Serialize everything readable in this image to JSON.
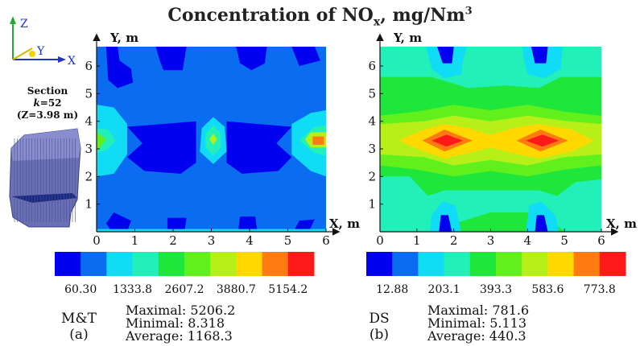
{
  "figure": {
    "title_main": "Concentration of NO",
    "title_sub": "x",
    "title_tail": ", mg/Nm",
    "title_sup": "3"
  },
  "axes_indicator": {
    "z": "Z",
    "y": "Y",
    "x": "X"
  },
  "section": {
    "line1": "Section",
    "line2_k": "k",
    "line2_rest": "=52",
    "line3": "(Z=3.98 m)"
  },
  "colors": {
    "scale": [
      "#0000ee",
      "#0a6cf0",
      "#11dcf5",
      "#22f0b8",
      "#1ee63a",
      "#62f01c",
      "#b6f018",
      "#ffd800",
      "#ff7a10",
      "#ff1a1a"
    ],
    "furnace": "#6b6fb4",
    "furnace_dark": "#1a2a80"
  },
  "chart_data": [
    {
      "type": "heatmap",
      "panel": "M&T",
      "panel_letter": "(a)",
      "xlabel": "X, m",
      "ylabel": "Y, m",
      "xlim": [
        0,
        6
      ],
      "ylim": [
        0,
        6.7
      ],
      "x_ticks": [
        "0",
        "1",
        "2",
        "3",
        "4",
        "5",
        "6"
      ],
      "y_ticks": [
        "1",
        "2",
        "3",
        "4",
        "5",
        "6"
      ],
      "colorbar_labels": [
        "60.30",
        "1333.8",
        "2607.2",
        "3880.7",
        "5154.2"
      ],
      "stats": {
        "maximal": "Maximal: 5206.2",
        "minimal": "Minimal: 8.318",
        "average": "Average: 1168.3"
      },
      "background_level": 1,
      "regions": [
        {
          "level": 0,
          "x": [
            0.25,
            0.55,
            0.6,
            0.9,
            0.95,
            0.55,
            0.3
          ],
          "y": [
            6.7,
            6.7,
            6.2,
            5.9,
            5.4,
            5.2,
            5.5
          ]
        },
        {
          "level": 0,
          "x": [
            1.55,
            2.35,
            2.25,
            1.75,
            1.65
          ],
          "y": [
            6.7,
            6.7,
            5.85,
            5.85,
            6.2
          ]
        },
        {
          "level": 0,
          "x": [
            3.65,
            4.45,
            4.4,
            4.05,
            3.75
          ],
          "y": [
            6.7,
            6.7,
            6.1,
            5.85,
            6.1
          ]
        },
        {
          "level": 0,
          "x": [
            5.1,
            5.7,
            5.85,
            5.3
          ],
          "y": [
            6.7,
            6.7,
            6.2,
            6.0
          ]
        },
        {
          "level": 0,
          "x": [
            0.8,
            2.6,
            2.6,
            2.2,
            1.25,
            0.8,
            1.2,
            0.8
          ],
          "y": [
            3.8,
            4.0,
            2.5,
            2.1,
            2.2,
            2.7,
            3.2,
            3.8
          ]
        },
        {
          "level": 0,
          "x": [
            3.4,
            5.1,
            4.7,
            5.1,
            4.75,
            3.8,
            3.4
          ],
          "y": [
            4.0,
            3.8,
            3.2,
            2.7,
            2.2,
            2.1,
            2.5
          ]
        },
        {
          "level": 0,
          "x": [
            0.4,
            0.8,
            0.9,
            0.45,
            0.25
          ],
          "y": [
            0.0,
            0.0,
            0.4,
            0.7,
            0.3
          ]
        },
        {
          "level": 0,
          "x": [
            1.85,
            2.3,
            2.35,
            1.85
          ],
          "y": [
            0.0,
            0.0,
            0.5,
            0.5
          ]
        },
        {
          "level": 0,
          "x": [
            3.7,
            4.2,
            4.15,
            3.75
          ],
          "y": [
            0.0,
            0.0,
            0.55,
            0.55
          ]
        },
        {
          "level": 0,
          "x": [
            5.15,
            5.55,
            5.7,
            5.3
          ],
          "y": [
            0.0,
            0.0,
            0.45,
            0.4
          ]
        },
        {
          "level": 2,
          "x": [
            0.0,
            0.45,
            0.8,
            0.8,
            0.45,
            0.0
          ],
          "y": [
            4.6,
            4.5,
            3.9,
            2.8,
            2.1,
            2.0
          ]
        },
        {
          "level": 2,
          "x": [
            6.0,
            5.6,
            5.1,
            5.1,
            5.6,
            6.0
          ],
          "y": [
            4.4,
            4.3,
            3.9,
            2.8,
            2.2,
            2.0
          ]
        },
        {
          "level": 2,
          "x": [
            2.75,
            3.05,
            3.35,
            3.4,
            3.05,
            2.7
          ],
          "y": [
            3.75,
            4.15,
            3.8,
            2.9,
            2.45,
            2.9
          ]
        },
        {
          "level": 2,
          "x": [
            0.0,
            6.0,
            6.0,
            0.0
          ],
          "y": [
            0.0,
            0.0,
            0.1,
            0.1
          ]
        },
        {
          "level": 3,
          "x": [
            0.0,
            0.3,
            0.5,
            0.25,
            0.0
          ],
          "y": [
            3.75,
            3.7,
            3.3,
            2.95,
            2.85
          ]
        },
        {
          "level": 3,
          "x": [
            6.0,
            5.7,
            5.3,
            5.7,
            6.0
          ],
          "y": [
            3.85,
            3.8,
            3.3,
            2.85,
            2.75
          ]
        },
        {
          "level": 3,
          "x": [
            2.85,
            3.05,
            3.25,
            3.25,
            3.05,
            2.85
          ],
          "y": [
            3.55,
            3.85,
            3.55,
            3.05,
            2.75,
            3.05
          ]
        },
        {
          "level": 5,
          "x": [
            0.0,
            0.25,
            0.05,
            0.0
          ],
          "y": [
            3.6,
            3.35,
            3.0,
            3.0
          ]
        },
        {
          "level": 6,
          "x": [
            2.95,
            3.05,
            3.15,
            3.05
          ],
          "y": [
            3.35,
            3.55,
            3.35,
            3.15
          ]
        },
        {
          "level": 6,
          "x": [
            6.0,
            5.6,
            5.45,
            5.6,
            6.0
          ],
          "y": [
            3.6,
            3.6,
            3.35,
            3.05,
            3.05
          ]
        },
        {
          "level": 8,
          "x": [
            5.65,
            5.95,
            5.95,
            5.65
          ],
          "y": [
            3.45,
            3.45,
            3.15,
            3.15
          ]
        }
      ]
    },
    {
      "type": "heatmap",
      "panel": "DS",
      "panel_letter": "(b)",
      "xlabel": "X, m",
      "ylabel": "Y, m",
      "xlim": [
        0,
        6
      ],
      "ylim": [
        0,
        6.7
      ],
      "x_ticks": [
        "0",
        "1",
        "2",
        "3",
        "4",
        "5",
        "6"
      ],
      "y_ticks": [
        "1",
        "2",
        "3",
        "4",
        "5",
        "6"
      ],
      "colorbar_labels": [
        "12.88",
        "203.1",
        "393.3",
        "583.6",
        "773.8"
      ],
      "stats": {
        "maximal": "Maximal: 781.6",
        "minimal": "Minimal: 5.113",
        "average": "Average: 440.3"
      },
      "background_level": 4,
      "regions": [
        {
          "level": 3,
          "x": [
            0.0,
            6.0,
            6.0,
            4.9,
            4.3,
            3.4,
            2.4,
            1.4,
            0.0
          ],
          "y": [
            6.7,
            6.7,
            5.6,
            5.6,
            5.2,
            5.3,
            5.2,
            5.6,
            5.6
          ]
        },
        {
          "level": 3,
          "x": [
            0.0,
            0.8,
            1.3,
            1.75,
            3.0,
            4.3,
            4.8,
            5.3,
            6.0,
            6.0,
            5.0,
            4.4,
            3.0,
            1.3,
            0.0
          ],
          "y": [
            2.0,
            2.0,
            1.3,
            1.5,
            1.5,
            1.5,
            1.3,
            1.8,
            1.9,
            0.0,
            0.0,
            0.7,
            0.7,
            0.0,
            0.0
          ]
        },
        {
          "level": 2,
          "x": [
            1.25,
            2.35,
            2.25,
            2.2,
            1.75,
            1.4
          ],
          "y": [
            6.7,
            6.7,
            6.2,
            5.7,
            5.55,
            5.9
          ]
        },
        {
          "level": 2,
          "x": [
            3.85,
            4.95,
            4.9,
            4.45,
            4.0,
            3.9
          ],
          "y": [
            6.7,
            6.7,
            5.9,
            5.55,
            5.7,
            6.2
          ]
        },
        {
          "level": 2,
          "x": [
            1.35,
            2.2,
            2.05,
            1.7,
            1.4
          ],
          "y": [
            0.0,
            0.0,
            0.95,
            1.1,
            0.6
          ]
        },
        {
          "level": 2,
          "x": [
            3.95,
            4.85,
            4.75,
            4.35,
            4.05
          ],
          "y": [
            0.0,
            0.0,
            0.6,
            1.1,
            0.95
          ]
        },
        {
          "level": 0,
          "x": [
            1.55,
            2.0,
            1.95,
            1.7
          ],
          "y": [
            6.7,
            6.7,
            6.1,
            6.1
          ]
        },
        {
          "level": 0,
          "x": [
            4.1,
            4.55,
            4.5,
            4.2
          ],
          "y": [
            6.7,
            6.7,
            6.1,
            6.1
          ]
        },
        {
          "level": 0,
          "x": [
            1.6,
            1.95,
            1.85,
            1.65
          ],
          "y": [
            0.0,
            0.0,
            0.6,
            0.6
          ]
        },
        {
          "level": 0,
          "x": [
            4.2,
            4.55,
            4.45,
            4.25
          ],
          "y": [
            0.0,
            0.0,
            0.6,
            0.6
          ]
        },
        {
          "level": 5,
          "x": [
            0.0,
            1.0,
            2.0,
            3.0,
            4.0,
            5.0,
            6.0,
            6.0,
            5.0,
            4.0,
            3.0,
            2.0,
            1.0,
            0.0
          ],
          "y": [
            4.2,
            4.35,
            4.6,
            4.4,
            4.6,
            4.35,
            4.2,
            2.4,
            2.25,
            2.0,
            2.2,
            2.0,
            2.25,
            2.4
          ]
        },
        {
          "level": 6,
          "x": [
            0.0,
            1.2,
            2.0,
            3.0,
            4.0,
            5.1,
            6.0,
            6.0,
            5.0,
            4.0,
            3.0,
            2.0,
            1.2,
            0.0
          ],
          "y": [
            3.9,
            4.0,
            4.2,
            4.0,
            4.2,
            4.0,
            3.9,
            2.8,
            2.7,
            2.4,
            2.6,
            2.4,
            2.7,
            2.8
          ]
        },
        {
          "level": 7,
          "x": [
            0.5,
            1.2,
            1.75,
            2.4,
            3.0,
            3.6,
            4.3,
            5.2,
            5.8,
            5.2,
            4.3,
            3.6,
            3.0,
            2.4,
            1.75,
            1.2
          ],
          "y": [
            3.3,
            3.7,
            3.9,
            3.75,
            3.5,
            3.75,
            3.9,
            3.7,
            3.3,
            2.9,
            2.65,
            2.85,
            3.05,
            2.85,
            2.65,
            2.9
          ]
        },
        {
          "level": 8,
          "x": [
            1.15,
            1.75,
            2.5,
            1.75
          ],
          "y": [
            3.3,
            3.7,
            3.3,
            2.9
          ]
        },
        {
          "level": 8,
          "x": [
            3.7,
            4.35,
            5.1,
            4.35
          ],
          "y": [
            3.3,
            3.7,
            3.3,
            2.9
          ]
        },
        {
          "level": 9,
          "x": [
            1.4,
            1.8,
            2.25,
            1.8
          ],
          "y": [
            3.3,
            3.52,
            3.3,
            3.08
          ]
        },
        {
          "level": 9,
          "x": [
            3.95,
            4.4,
            4.85,
            4.4
          ],
          "y": [
            3.3,
            3.52,
            3.3,
            3.08
          ]
        }
      ]
    }
  ]
}
